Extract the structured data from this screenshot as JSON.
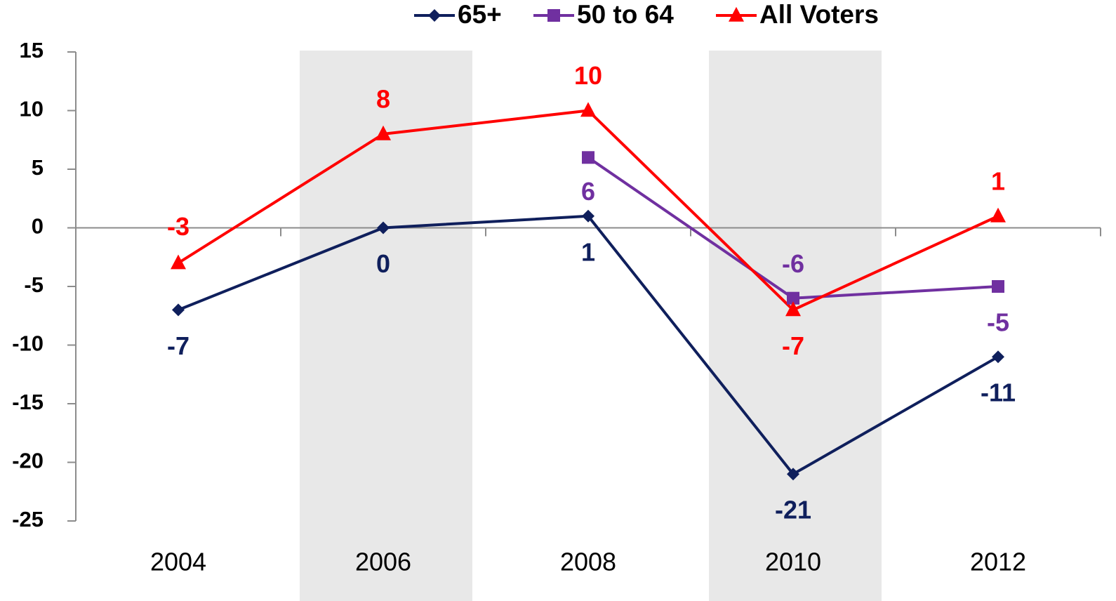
{
  "chart_data": {
    "type": "line",
    "categories": [
      "2004",
      "2006",
      "2008",
      "2010",
      "2012"
    ],
    "series": [
      {
        "name": "65+",
        "color": "#0f1f5c",
        "marker": "diamond",
        "values": [
          -7,
          0,
          1,
          -21,
          -11
        ]
      },
      {
        "name": "50 to 64",
        "color": "#7030a0",
        "marker": "square",
        "values": [
          null,
          null,
          6,
          -6,
          -5
        ]
      },
      {
        "name": "All Voters",
        "color": "#ff0000",
        "marker": "triangle",
        "values": [
          -3,
          8,
          10,
          -7,
          1
        ]
      }
    ],
    "ylim": [
      -25,
      15
    ],
    "yticks": [
      -25,
      -20,
      -15,
      -10,
      -5,
      0,
      5,
      10,
      15
    ],
    "grid": false,
    "legend": "top"
  }
}
